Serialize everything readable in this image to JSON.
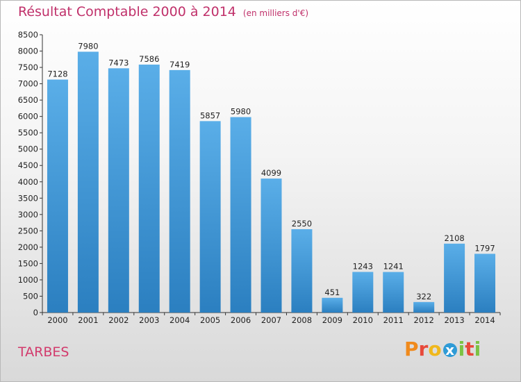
{
  "title": "Résultat Comptable 2000 à 2014",
  "subtitle": "(en milliers d'€)",
  "city": "TARBES",
  "logo": {
    "letters": [
      "P",
      "r",
      "o",
      "x",
      "i",
      "t",
      "i"
    ],
    "colors": [
      "#f08a1c",
      "#e8493a",
      "#f0b81c",
      "#2f9bd6",
      "#7cc243",
      "#e8493a",
      "#7cc243"
    ]
  },
  "colors": {
    "bar_top": "#5aaee8",
    "bar_bottom": "#2b7fc0",
    "title": "#c0306a"
  },
  "chart_data": {
    "type": "bar",
    "title": "Résultat Comptable 2000 à 2014",
    "categories": [
      "2000",
      "2001",
      "2002",
      "2003",
      "2004",
      "2005",
      "2006",
      "2007",
      "2008",
      "2009",
      "2010",
      "2011",
      "2012",
      "2013",
      "2014"
    ],
    "values": [
      7128,
      7980,
      7473,
      7586,
      7419,
      5857,
      5980,
      4099,
      2550,
      451,
      1243,
      1241,
      322,
      2108,
      1797
    ],
    "ylim": [
      0,
      8500
    ],
    "yticks": [
      "0",
      "500",
      "1000",
      "1500",
      "2000",
      "2500",
      "3000",
      "3500",
      "4000",
      "4500",
      "5000",
      "5500",
      "6000",
      "6500",
      "7000",
      "7500",
      "8000",
      "8500"
    ],
    "grid": false
  }
}
